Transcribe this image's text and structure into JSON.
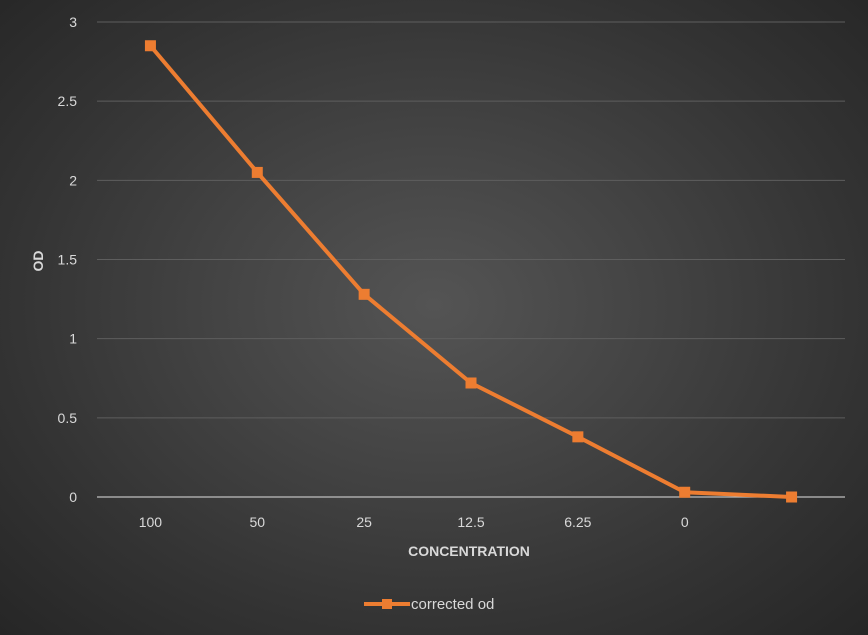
{
  "chart_data": {
    "type": "line",
    "title": "",
    "xlabel": "CONCENTRATION",
    "ylabel": "OD",
    "categories": [
      "100",
      "50",
      "25",
      "12.5",
      "6.25",
      "0",
      ""
    ],
    "series": [
      {
        "name": "corrected od",
        "values": [
          2.85,
          2.05,
          1.28,
          0.72,
          0.38,
          0.03,
          0.0
        ],
        "color": "#ed7d31",
        "marker": "square"
      }
    ],
    "ylim": [
      0,
      3
    ],
    "yticks": [
      "0",
      "0.5",
      "1",
      "1.5",
      "2",
      "2.5",
      "3"
    ],
    "grid": true,
    "legend": "bottom"
  }
}
